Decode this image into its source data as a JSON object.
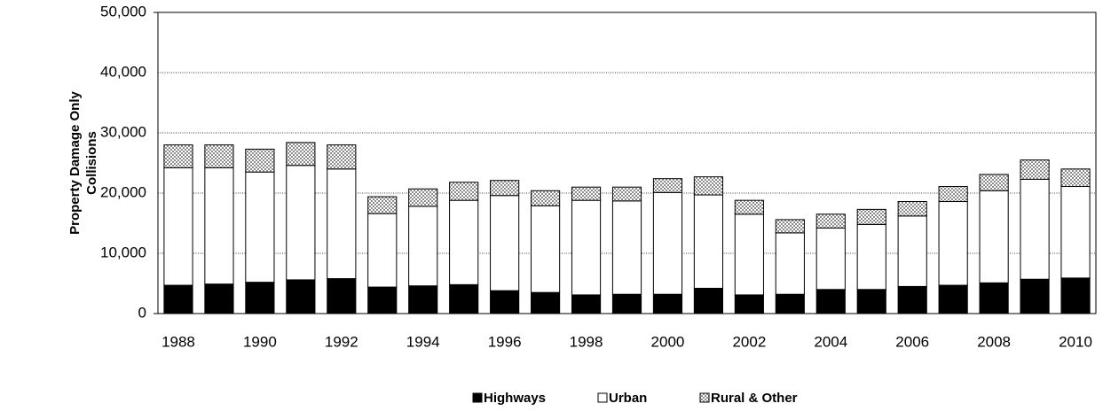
{
  "chart_data": {
    "type": "stacked_bar",
    "y_label": [
      "Property Damage Only",
      "Collisions"
    ],
    "categories": [
      "1988",
      null,
      "1990",
      null,
      "1992",
      null,
      "1994",
      null,
      "1996",
      null,
      "1998",
      null,
      "2000",
      null,
      "2002",
      null,
      "2004",
      null,
      "2006",
      null,
      "2008",
      null,
      "2010"
    ],
    "series": [
      {
        "name": "Highways",
        "color": "#000000",
        "values": [
          4700,
          4900,
          5200,
          5600,
          5800,
          4400,
          4600,
          4800,
          3800,
          3500,
          3100,
          3200,
          3200,
          4200,
          3100,
          3200,
          4000,
          4000,
          4500,
          4700,
          5100,
          5700,
          5900
        ]
      },
      {
        "name": "Urban",
        "color": "#ffffff",
        "values": [
          19500,
          19300,
          18300,
          19000,
          18200,
          12200,
          13200,
          14000,
          15800,
          14400,
          15700,
          15500,
          16900,
          15500,
          13400,
          10200,
          10200,
          10800,
          11700,
          13900,
          15300,
          16600,
          15200
        ]
      },
      {
        "name": "Rural & Other",
        "color": "#8c8c8c",
        "pattern": "checker",
        "values": [
          3800,
          3800,
          3800,
          3800,
          4000,
          2800,
          2900,
          3000,
          2500,
          2500,
          2200,
          2300,
          2300,
          3000,
          2300,
          2200,
          2300,
          2500,
          2400,
          2500,
          2700,
          3200,
          2900
        ]
      }
    ],
    "ylim": [
      0,
      50000
    ],
    "yticks": [
      0,
      {
        "value": 10000,
        "label": "10,000"
      },
      {
        "value": 20000,
        "label": "20,000"
      },
      {
        "value": 30000,
        "label": "30,000"
      },
      {
        "value": 40000,
        "label": "40,000"
      },
      {
        "value": 50000,
        "label": "50,000"
      }
    ],
    "grid": true,
    "legend": "bottom"
  }
}
